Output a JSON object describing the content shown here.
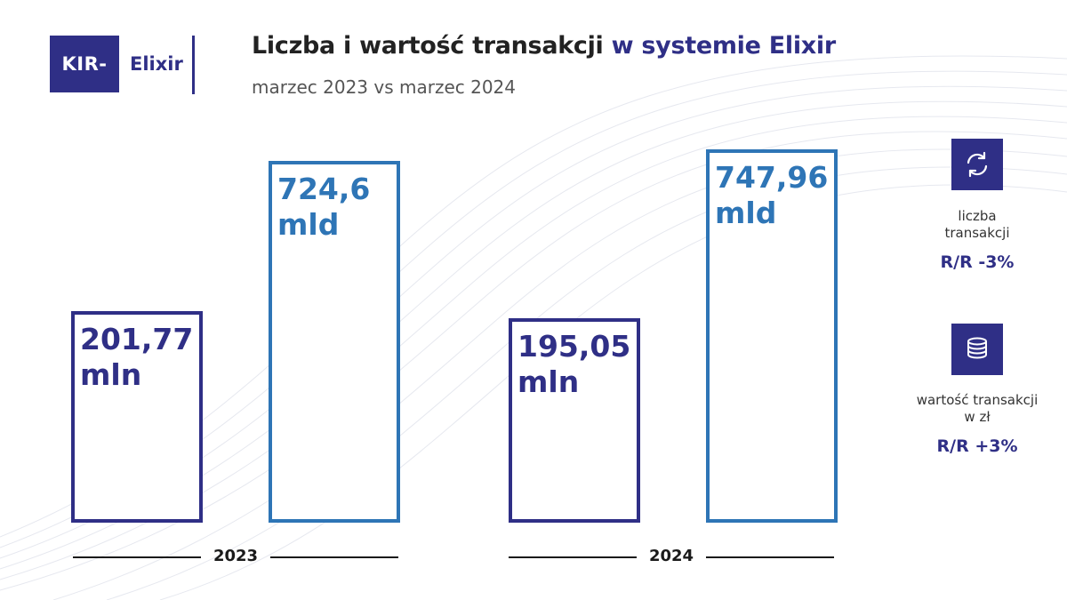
{
  "brand": {
    "kir": "KIR",
    "elixir": "Elixir"
  },
  "header": {
    "title_main": "Liczba i wartość transakcji",
    "title_highlight": "w systemie Elixir",
    "subtitle": "marzec 2023 vs marzec 2024"
  },
  "chart_data": {
    "type": "bar",
    "title": "Liczba i wartość transakcji w systemie Elixir",
    "subtitle": "marzec 2023 vs marzec 2024",
    "categories": [
      "2023",
      "2024"
    ],
    "series": [
      {
        "name": "liczba transakcji",
        "values": [
          201.77,
          195.05
        ],
        "unit": "mln",
        "labels": [
          [
            "201,77",
            "mln"
          ],
          [
            "195,05",
            "mln"
          ]
        ],
        "color": "#2f2f86"
      },
      {
        "name": "wartość transakcji w zł",
        "values": [
          724.6,
          747.96
        ],
        "unit": "mld",
        "labels": [
          [
            "724,6",
            "mld"
          ],
          [
            "747,96",
            "mld"
          ]
        ],
        "color": "#2e75b6"
      }
    ],
    "grid": false
  },
  "kpis": [
    {
      "label_lines": [
        "liczba",
        "transakcji"
      ],
      "value": "R/R -3%",
      "icon": "sync-arrows-icon"
    },
    {
      "label_lines": [
        "wartość transakcji",
        "w zł"
      ],
      "value": "R/R +3%",
      "icon": "coin-stack-icon"
    }
  ],
  "colors": {
    "count": "#2f2f86",
    "value": "#2e75b6",
    "axis": "#1a1a1a"
  }
}
